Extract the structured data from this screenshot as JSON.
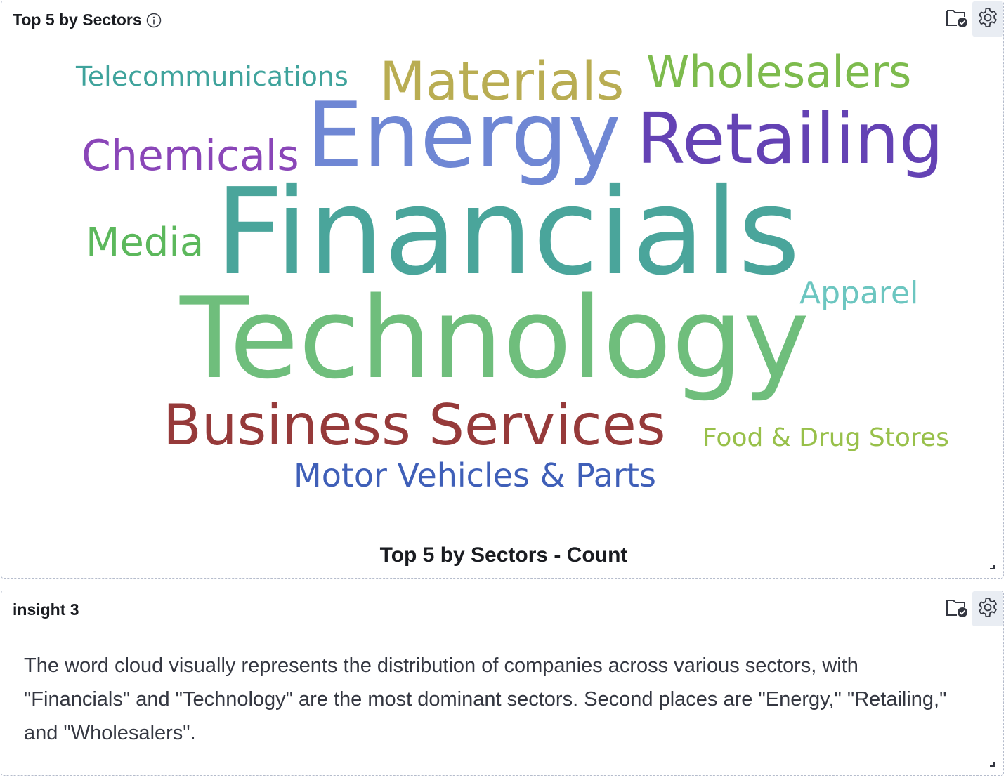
{
  "wordcloud_panel": {
    "title": "Top 5 by Sectors",
    "caption": "Top 5 by Sectors - Count"
  },
  "insight_panel": {
    "title": "insight 3",
    "body": "The word cloud visually represents the distribution of companies across various sectors, with \"Financials\" and \"Technology\" are the most dominant sectors. Second places are \"Energy,\" \"Retailing,\" and \"Wholesalers\"."
  },
  "words": [
    {
      "text": "Telecommunications",
      "color": "#3fa39c"
    },
    {
      "text": "Materials",
      "color": "#b9ad52"
    },
    {
      "text": "Wholesalers",
      "color": "#7dbb4d"
    },
    {
      "text": "Chemicals",
      "color": "#8a46b8"
    },
    {
      "text": "Energy",
      "color": "#6f87d4"
    },
    {
      "text": "Retailing",
      "color": "#6442b4"
    },
    {
      "text": "Media",
      "color": "#5cb85c"
    },
    {
      "text": "Financials",
      "color": "#4aa59b"
    },
    {
      "text": "Apparel",
      "color": "#6cc6c0"
    },
    {
      "text": "Technology",
      "color": "#6fbe7c"
    },
    {
      "text": "Business Services",
      "color": "#963a3a"
    },
    {
      "text": "Food & Drug Stores",
      "color": "#98c04a"
    },
    {
      "text": "Motor Vehicles & Parts",
      "color": "#3f5fb8"
    }
  ]
}
